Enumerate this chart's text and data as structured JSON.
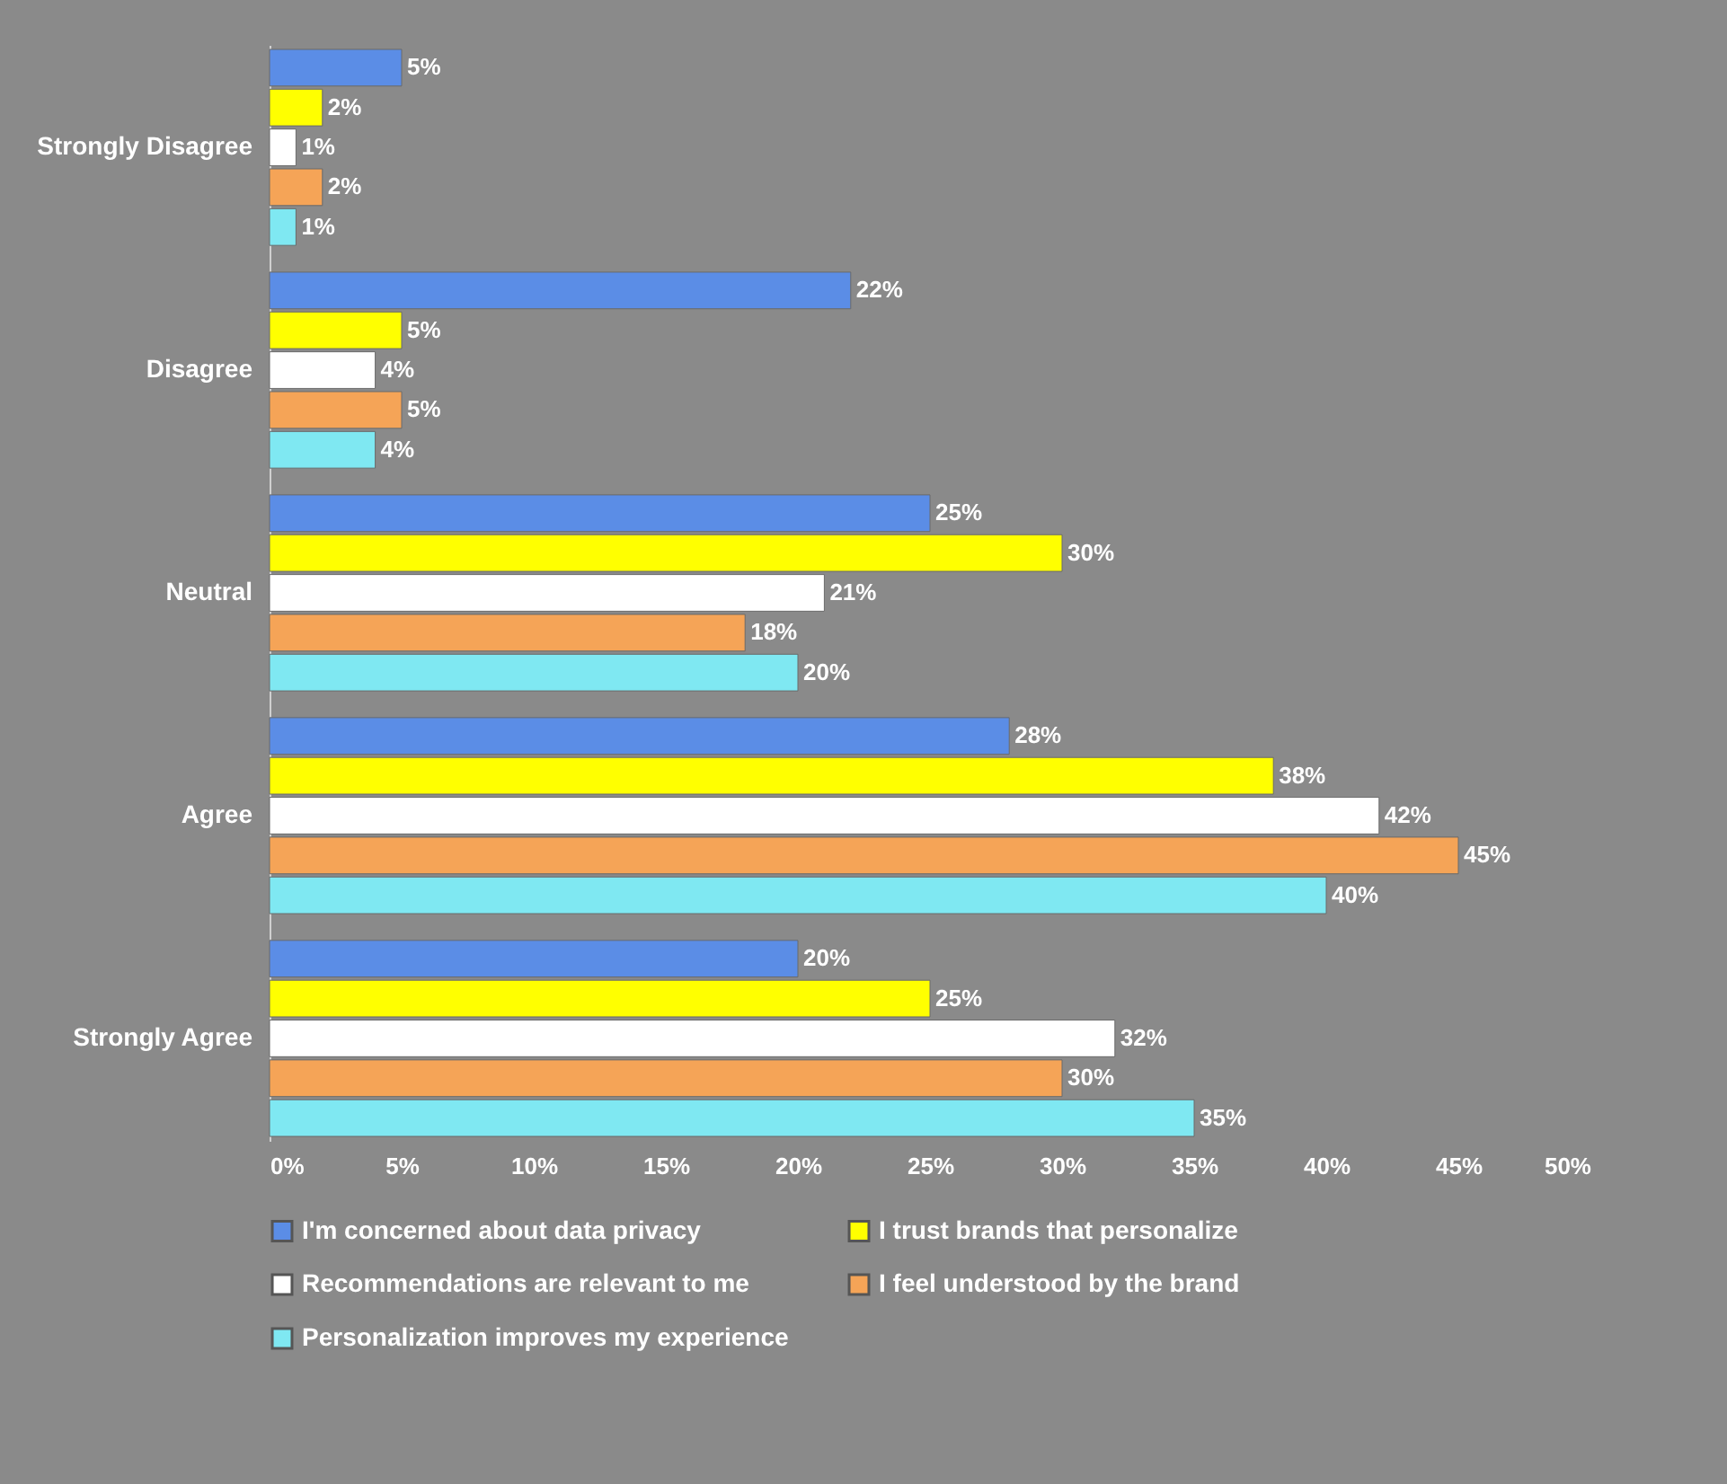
{
  "chart_data": {
    "type": "bar",
    "orientation": "horizontal",
    "categories": [
      "Strongly Disagree",
      "Disagree",
      "Neutral",
      "Agree",
      "Strongly Agree"
    ],
    "series": [
      {
        "name": "I'm concerned about data privacy",
        "color": "#5b8de6",
        "values": [
          5,
          22,
          25,
          28,
          20
        ],
        "value_labels": [
          "5%",
          "22%",
          "25%",
          "28%",
          "20%"
        ]
      },
      {
        "name": "I trust brands that personalize",
        "color": "#ffff00",
        "values": [
          2,
          5,
          30,
          38,
          25
        ],
        "value_labels": [
          "2%",
          "5%",
          "30%",
          "38%",
          "25%"
        ]
      },
      {
        "name": "Recommendations are relevant to me",
        "color": "#ffffff",
        "values": [
          1,
          4,
          21,
          42,
          32
        ],
        "value_labels": [
          "1%",
          "4%",
          "21%",
          "42%",
          "32%"
        ]
      },
      {
        "name": "I feel understood by the brand",
        "color": "#f5a457",
        "values": [
          2,
          5,
          18,
          45,
          30
        ],
        "value_labels": [
          "2%",
          "5%",
          "18%",
          "45%",
          "30%"
        ]
      },
      {
        "name": "Personalization improves my experience",
        "color": "#7fe8f2",
        "values": [
          1,
          4,
          20,
          40,
          35
        ],
        "value_labels": [
          "1%",
          "4%",
          "20%",
          "40%",
          "35%"
        ]
      }
    ],
    "xlim": [
      0,
      50
    ],
    "xticks": [
      {
        "value": 0,
        "label": "0%"
      },
      {
        "value": 5,
        "label": "5%"
      },
      {
        "value": 10,
        "label": "10%"
      },
      {
        "value": 15,
        "label": "15%"
      },
      {
        "value": 20,
        "label": "20%"
      },
      {
        "value": 25,
        "label": "25%"
      },
      {
        "value": 30,
        "label": "30%"
      },
      {
        "value": 35,
        "label": "35%"
      },
      {
        "value": 40,
        "label": "40%"
      },
      {
        "value": 45,
        "label": "45%"
      },
      {
        "value": 50,
        "label": "50%"
      }
    ],
    "legend": "bottom"
  }
}
